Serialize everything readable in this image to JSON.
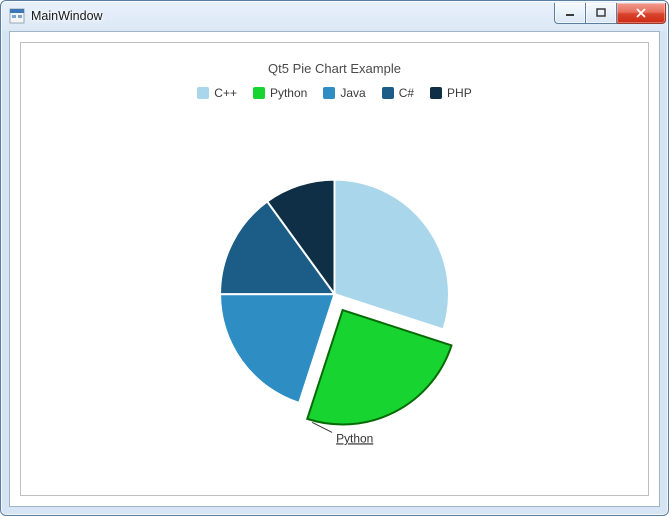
{
  "window": {
    "title": "MainWindow"
  },
  "chart": {
    "type": "pie",
    "title": "Qt5 Pie Chart Example",
    "title_fontsize": 13,
    "title_color": "#4a4a4a",
    "background_color": "#ffffff",
    "legend_fontsize": 12,
    "legend_position": "top",
    "radius": 115,
    "explode_offset": 18,
    "slice_border_color": "#ffffff",
    "slice_border_width": 2,
    "exploded_border_color": "#066b06",
    "series": [
      {
        "label": "C++",
        "value": 30,
        "color": "#aad6eb",
        "exploded": false
      },
      {
        "label": "Python",
        "value": 25,
        "color": "#18d430",
        "exploded": true,
        "callout": "Python"
      },
      {
        "label": "Java",
        "value": 20,
        "color": "#2e8ec4",
        "exploded": false
      },
      {
        "label": "C#",
        "value": 15,
        "color": "#1b5d86",
        "exploded": false
      },
      {
        "label": "PHP",
        "value": 10,
        "color": "#0e2f46",
        "exploded": false
      }
    ]
  }
}
